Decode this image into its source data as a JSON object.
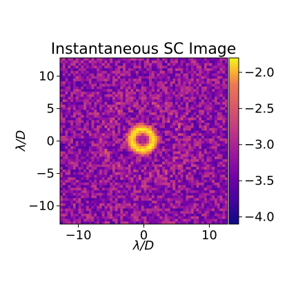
{
  "chart_data": {
    "type": "heatmap",
    "title": "Instantaneous SC Image",
    "xlabel": "λ/D",
    "ylabel": "λ/D",
    "xlim": [
      -12.8,
      12.8
    ],
    "ylim": [
      -12.8,
      12.8
    ],
    "x_ticks": [
      -10,
      0,
      10
    ],
    "x_tick_labels": [
      "−10",
      "0",
      "10"
    ],
    "y_ticks": [
      -10,
      -5,
      0,
      5,
      10
    ],
    "y_tick_labels": [
      "−10",
      "−5",
      "0",
      "5",
      "10"
    ],
    "grid": false,
    "colormap": "plasma",
    "color_range": [
      -4.1,
      -1.8
    ],
    "colorbar_ticks": [
      -2.0,
      -2.5,
      -3.0,
      -3.5,
      -4.0
    ],
    "colorbar_tick_labels": [
      "−2.0",
      "−2.5",
      "−3.0",
      "−3.5",
      "−4.0"
    ],
    "pixel_grid": [
      64,
      64
    ],
    "features": {
      "background_level": -3.4,
      "background_spread": 0.4,
      "core_ring_center": [
        -0.2,
        0.2
      ],
      "core_ring_radius": 1.6,
      "core_ring_level": -1.9,
      "core_dark_center_level": -3.2,
      "halo_ring_radius": 6.0,
      "halo_ring_level": -3.0
    }
  }
}
